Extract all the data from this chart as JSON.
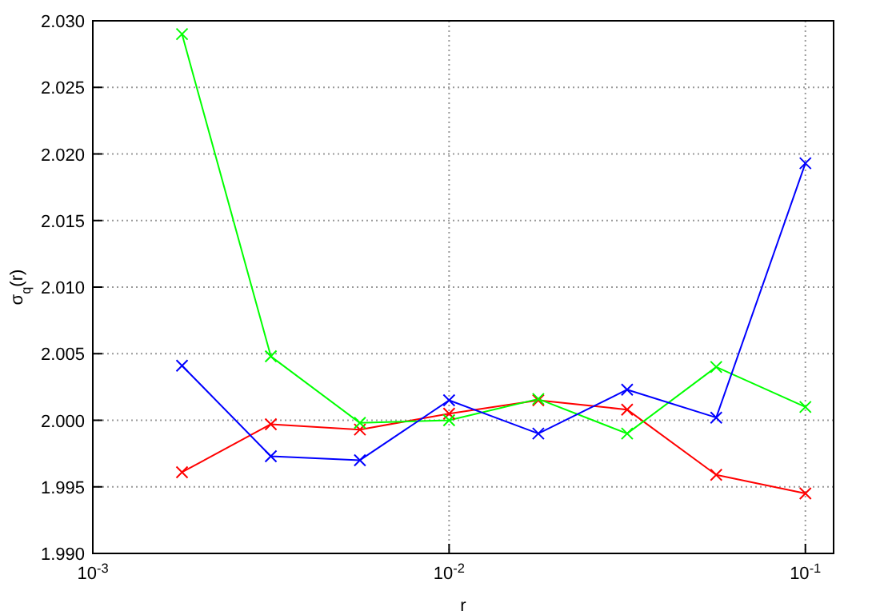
{
  "chart_data": {
    "type": "line",
    "xlabel": "r",
    "ylabel": "σ$_{q}$(r)",
    "log": "x",
    "grid": true,
    "line_style": "solid",
    "xlim": [
      0.001,
      0.12
    ],
    "xticks": [
      {
        "value": 0.001,
        "label": "10$^{-3}$"
      },
      {
        "value": 0.01,
        "label": "10$^{-2}$"
      },
      {
        "value": 0.1,
        "label": "10$^{-1}$"
      }
    ],
    "ylim": [
      1.99,
      2.03
    ],
    "yticks": [
      {
        "value": 1.99,
        "label": "1.990"
      },
      {
        "value": 1.995,
        "label": "1.995"
      },
      {
        "value": 2,
        "label": "2.000"
      },
      {
        "value": 2.005,
        "label": "2.005"
      },
      {
        "value": 2.01,
        "label": "2.010"
      },
      {
        "value": 2.015,
        "label": "2.015"
      },
      {
        "value": 2.02,
        "label": "2.020"
      },
      {
        "value": 2.025,
        "label": "2.025"
      },
      {
        "value": 2.03,
        "label": "2.030"
      }
    ],
    "x": [
      0.00178,
      0.00316,
      0.00562,
      0.01,
      0.0178,
      0.0316,
      0.0562,
      0.1
    ],
    "series": [
      {
        "color": "#ff0000",
        "marker": "cross",
        "values": [
          1.9961,
          1.9997,
          1.9993,
          2.0005,
          2.0015,
          2.0008,
          1.9959,
          1.9945
        ]
      },
      {
        "color": "#00ff00",
        "marker": "cross",
        "values": [
          2.029,
          2.0048,
          1.9998,
          2.0,
          2.0016,
          1.999,
          2.004,
          2.001
        ]
      },
      {
        "color": "#0000ff",
        "marker": "cross",
        "values": [
          2.0041,
          1.9973,
          1.997,
          2.0015,
          1.999,
          2.0023,
          2.0002,
          2.0193
        ]
      }
    ]
  }
}
